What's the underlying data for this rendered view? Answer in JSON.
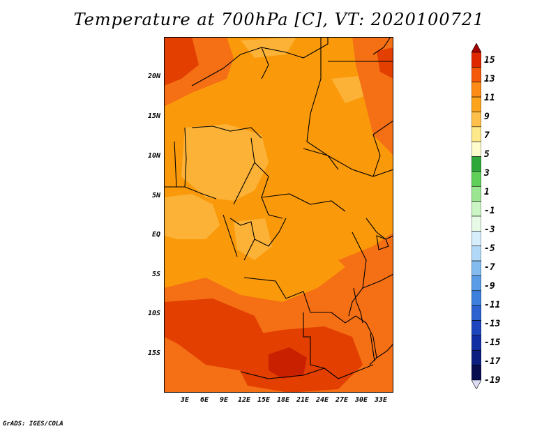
{
  "title": "Temperature at 700hPa [C], VT: 2020100721",
  "credit": "GrADS: IGES/COLA",
  "axes": {
    "y_ticks": [
      "20N",
      "15N",
      "10N",
      "5N",
      "EQ",
      "5S",
      "10S",
      "15S"
    ],
    "x_ticks": [
      "3E",
      "6E",
      "9E",
      "12E",
      "15E",
      "18E",
      "21E",
      "24E",
      "27E",
      "30E",
      "33E"
    ]
  },
  "colorbar": {
    "labels": [
      "15",
      "13",
      "11",
      "9",
      "7",
      "5",
      "3",
      "1",
      "-1",
      "-3",
      "-5",
      "-7",
      "-9",
      "-11",
      "-13",
      "-15",
      "-17",
      "-19"
    ],
    "colors": [
      "#a50000",
      "#e02800",
      "#f55a0a",
      "#fb8b14",
      "#fca51c",
      "#fdc04a",
      "#fde88a",
      "#fefbcc",
      "#2fa83a",
      "#60cf5a",
      "#9be691",
      "#cbf5c4",
      "#e6fae6",
      "#d6edfb",
      "#b1d8f7",
      "#84bcef",
      "#5a9ce6",
      "#3c7fdc",
      "#2b62cf",
      "#1d45bd",
      "#122ea3",
      "#0c1f80",
      "#070d4f",
      "#dcdcf5"
    ]
  },
  "map": {
    "color_hot": "#e23f00",
    "color_warm": "#f56f14",
    "color_base": "#fa9a0a",
    "color_mild": "#fbb237",
    "color_darkest": "#c92000",
    "border_color": "#000000"
  }
}
